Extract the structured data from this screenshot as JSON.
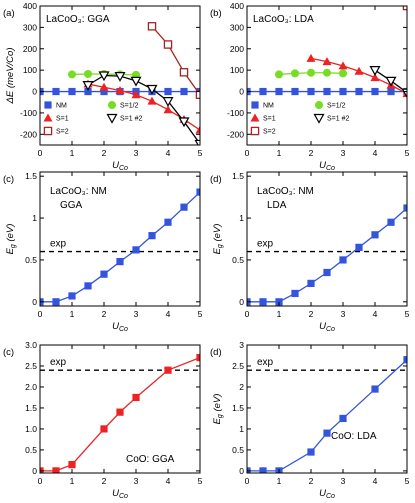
{
  "colors": {
    "blue": "#3355dd",
    "red": "#ee2222",
    "green": "#77dd22",
    "black": "#000000",
    "darkred": "#aa2222"
  },
  "chart_data": [
    {
      "type": "line",
      "panel_label": "(a)",
      "title": "LaCoO₃: GGA",
      "xlabel": "U_Co",
      "ylabel": "ΔE (meV/Co)",
      "xlim": [
        0,
        5
      ],
      "ylim": [
        -250,
        400
      ],
      "xticks": [
        "0",
        "1",
        "2",
        "3",
        "4",
        "5"
      ],
      "yticks": [
        "-200",
        "-100",
        "0",
        "100",
        "200",
        "300",
        "400"
      ],
      "series": [
        {
          "name": "NM",
          "marker": "square",
          "color": "#3355dd",
          "x": [
            0,
            0.5,
            1,
            1.5,
            2,
            2.5,
            3,
            3.5,
            4,
            4.5,
            5
          ],
          "y": [
            0,
            0,
            0,
            0,
            0,
            0,
            0,
            0,
            0,
            0,
            0
          ]
        },
        {
          "name": "S=1/2",
          "marker": "circle",
          "color": "#77dd22",
          "x": [
            1,
            1.5,
            2,
            2.5,
            3
          ],
          "y": [
            80,
            82,
            82,
            80,
            78
          ]
        },
        {
          "name": "S=1",
          "marker": "triangle",
          "color": "#ee2222",
          "x": [
            1.5,
            2,
            2.5,
            3,
            3.5,
            4,
            4.5,
            5
          ],
          "y": [
            35,
            20,
            5,
            -15,
            -45,
            -85,
            -130,
            -180
          ]
        },
        {
          "name": "S=1 #2",
          "marker": "triangle-down",
          "color": "#000000",
          "x": [
            1.5,
            2,
            2.5,
            3,
            3.5,
            4,
            4.5,
            5
          ],
          "y": [
            30,
            75,
            72,
            50,
            12,
            -45,
            -140,
            -245
          ]
        },
        {
          "name": "S=2",
          "marker": "square-open",
          "color": "#aa2222",
          "x": [
            3.5,
            4,
            4.5,
            5
          ],
          "y": [
            305,
            220,
            90,
            -15
          ]
        }
      ],
      "legend": {
        "placement": "bottom-left"
      }
    },
    {
      "type": "line",
      "panel_label": "(b)",
      "title": "LaCoO₃: LDA",
      "xlabel": "U_Co",
      "ylabel": "",
      "xlim": [
        0,
        5
      ],
      "ylim": [
        -250,
        400
      ],
      "xticks": [
        "0",
        "1",
        "2",
        "3",
        "4",
        "5"
      ],
      "yticks": [
        "-200",
        "-100",
        "0",
        "100",
        "200",
        "300",
        "400"
      ],
      "series": [
        {
          "name": "NM",
          "marker": "square",
          "color": "#3355dd",
          "x": [
            0,
            0.5,
            1,
            1.5,
            2,
            2.5,
            3,
            3.5,
            4,
            4.5,
            5
          ],
          "y": [
            0,
            0,
            0,
            0,
            0,
            0,
            0,
            0,
            0,
            0,
            0
          ]
        },
        {
          "name": "S=1/2",
          "marker": "circle",
          "color": "#77dd22",
          "x": [
            1,
            1.5,
            2,
            2.5,
            3
          ],
          "y": [
            80,
            85,
            88,
            88,
            85
          ]
        },
        {
          "name": "S=1",
          "marker": "triangle",
          "color": "#ee2222",
          "x": [
            2,
            2.5,
            3,
            3.5,
            4,
            4.5,
            5
          ],
          "y": [
            155,
            140,
            120,
            95,
            65,
            30,
            -10
          ]
        },
        {
          "name": "S=1 #2",
          "marker": "triangle-down",
          "color": "#000000",
          "x": [
            4,
            4.5,
            5
          ],
          "y": [
            100,
            50,
            -5
          ]
        },
        {
          "name": "S=2",
          "marker": "square-open",
          "color": "#aa2222",
          "x": [
            5
          ],
          "y": [
            400
          ]
        }
      ],
      "legend": {
        "placement": "bottom-left"
      }
    },
    {
      "type": "line",
      "panel_label": "(c)",
      "title": "LaCoO₃: NM",
      "subtitle": "GGA",
      "xlabel": "U_Co",
      "ylabel": "E_g (eV)",
      "xlim": [
        0,
        5
      ],
      "ylim": [
        -0.05,
        1.55
      ],
      "xticks": [
        "0",
        "1",
        "2",
        "3",
        "4",
        "5"
      ],
      "yticks": [
        "0",
        "0.5",
        "1",
        "1.5"
      ],
      "reference": {
        "label": "exp",
        "y": 0.6
      },
      "series": [
        {
          "name": "",
          "marker": "square",
          "color": "#3355dd",
          "x": [
            0,
            0.5,
            1,
            1.5,
            2,
            2.5,
            3,
            3.5,
            4,
            4.5,
            5
          ],
          "y": [
            0,
            0,
            0.07,
            0.19,
            0.33,
            0.48,
            0.62,
            0.79,
            0.95,
            1.13,
            1.31
          ]
        }
      ]
    },
    {
      "type": "line",
      "panel_label": "(d)",
      "title": "LaCoO₃: NM",
      "subtitle": "LDA",
      "xlabel": "U_Co",
      "ylabel": "E_g (eV)",
      "xlim": [
        0,
        5
      ],
      "ylim": [
        -0.05,
        1.55
      ],
      "xticks": [
        "0",
        "1",
        "2",
        "3",
        "4",
        "5"
      ],
      "yticks": [
        "0",
        "0.5",
        "1",
        "1.5"
      ],
      "reference": {
        "label": "exp",
        "y": 0.6
      },
      "series": [
        {
          "name": "",
          "marker": "square",
          "color": "#3355dd",
          "x": [
            0,
            0.5,
            1,
            1.5,
            2,
            2.5,
            3,
            3.5,
            4,
            4.5,
            5
          ],
          "y": [
            0,
            0,
            0,
            0.1,
            0.22,
            0.35,
            0.5,
            0.65,
            0.8,
            0.95,
            1.12
          ]
        }
      ]
    },
    {
      "type": "line",
      "panel_label": "(c)",
      "title": "CoO: GGA",
      "xlabel": "U_Co",
      "ylabel": "",
      "xlim": [
        0,
        5
      ],
      "ylim": [
        -0.05,
        3.0
      ],
      "xticks": [
        "0",
        "1",
        "2",
        "3",
        "4",
        "5"
      ],
      "yticks": [
        "0",
        "0.5",
        "1.0",
        "1.5",
        "2.0",
        "2.5",
        "3.0"
      ],
      "reference": {
        "label": "exp",
        "y": 2.4
      },
      "series": [
        {
          "name": "",
          "marker": "square",
          "color": "#ee2222",
          "x": [
            0,
            0.5,
            1,
            2,
            2.5,
            3,
            4,
            5
          ],
          "y": [
            0,
            0,
            0.15,
            1.0,
            1.4,
            1.75,
            2.4,
            2.7
          ]
        }
      ]
    },
    {
      "type": "line",
      "panel_label": "(d)",
      "title": "CoO: LDA",
      "xlabel": "U_Co",
      "ylabel": "E_g (eV)",
      "xlim": [
        0,
        5
      ],
      "ylim": [
        -0.05,
        3.0
      ],
      "xticks": [
        "0",
        "1",
        "2",
        "3",
        "4",
        "5"
      ],
      "yticks": [
        "0",
        "0.5",
        "1",
        "1.5",
        "2",
        "2.5",
        "3"
      ],
      "reference": {
        "label": "exp",
        "y": 2.4
      },
      "series": [
        {
          "name": "",
          "marker": "square",
          "color": "#3355dd",
          "x": [
            0,
            0.5,
            1,
            2,
            2.5,
            3,
            4,
            5
          ],
          "y": [
            0,
            0,
            0,
            0.45,
            0.9,
            1.25,
            1.95,
            2.65
          ]
        }
      ]
    }
  ]
}
